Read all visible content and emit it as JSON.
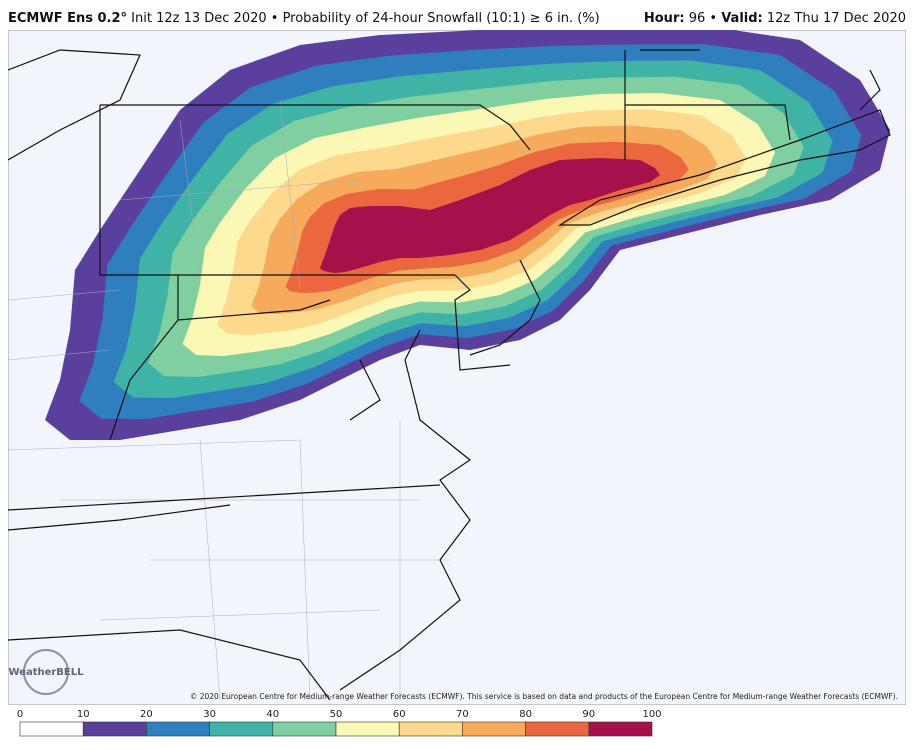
{
  "header": {
    "model": "ECMWF Ens 0.2°",
    "description": "Init 12z 13 Dec 2020 • Probability of 24-hour Snowfall (10:1) ≥ 6 in. (%)",
    "hour_label": "Hour:",
    "hour": "96",
    "separator": "•",
    "valid_label": "Valid:",
    "valid": "12z Thu 17 Dec 2020"
  },
  "logo": "WeatherBELL",
  "copyright": "© 2020 European Centre for Medium-range Weather Forecasts (ECMWF). This service is based on data and products of the European Centre for Medium-range Weather Forecasts (ECMWF).",
  "colorbar": {
    "ticks": [
      0,
      10,
      20,
      30,
      40,
      50,
      60,
      70,
      80,
      90,
      100
    ],
    "colors": [
      "#ffffff",
      "#5b3f9c",
      "#2f7fbf",
      "#3fb3a6",
      "#80cfa1",
      "#fbf7b4",
      "#fcd98d",
      "#f5aa5c",
      "#ea673f",
      "#a6104b"
    ]
  }
}
